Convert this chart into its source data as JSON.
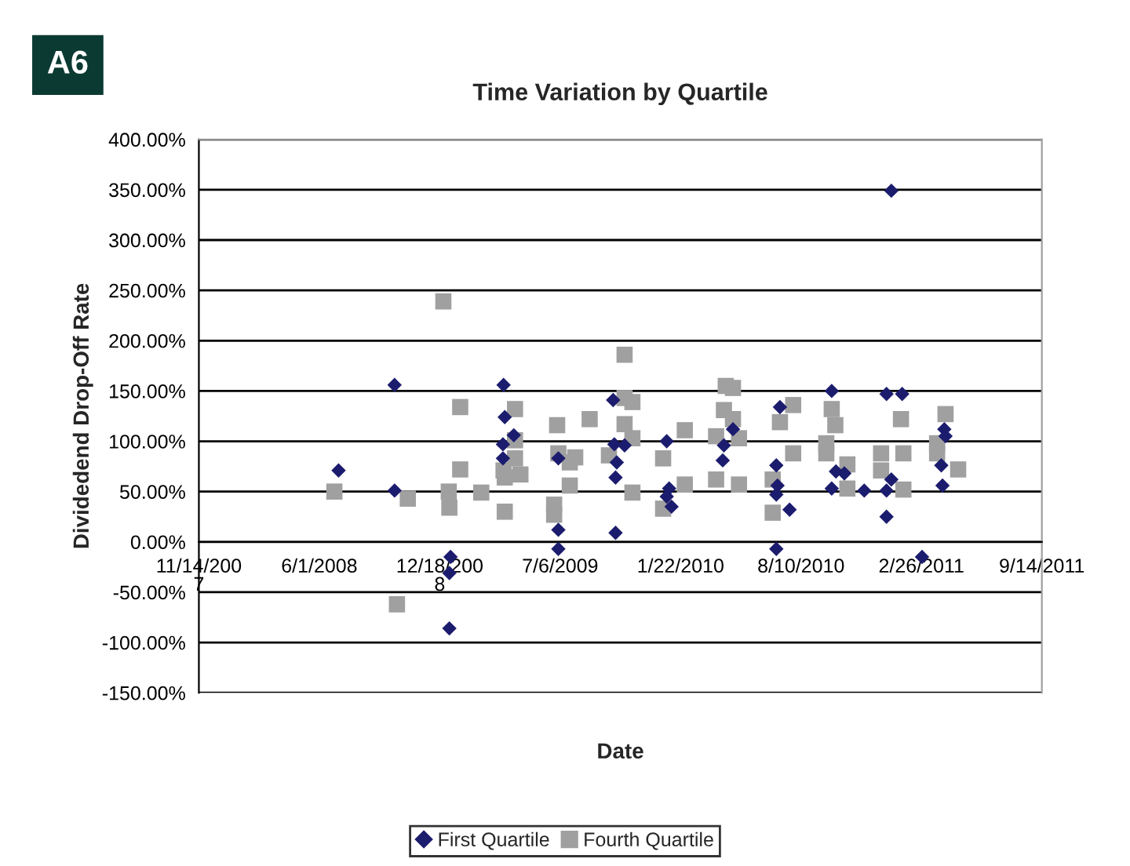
{
  "chart_data": {
    "type": "scatter",
    "title": "Time Variation by Quartile",
    "xlabel": "Date",
    "ylabel": "Dividedend Drop-Off Rate",
    "annotations": [
      "A6"
    ],
    "xlim": [
      "2007-11-14",
      "2011-09-14"
    ],
    "xticks": [
      {
        "value": "2007-11-14",
        "label": "11/14/200\n7"
      },
      {
        "value": "2008-06-01",
        "label": "6/1/2008"
      },
      {
        "value": "2008-12-18",
        "label": "12/18/200\n8"
      },
      {
        "value": "2009-07-06",
        "label": "7/6/2009"
      },
      {
        "value": "2010-01-22",
        "label": "1/22/2010"
      },
      {
        "value": "2010-08-10",
        "label": "8/10/2010"
      },
      {
        "value": "2011-02-26",
        "label": "2/26/2011"
      },
      {
        "value": "2011-09-14",
        "label": "9/14/2011"
      }
    ],
    "ylim": [
      -150,
      400
    ],
    "yticks": [
      {
        "value": -150,
        "label": "-150.00%"
      },
      {
        "value": -100,
        "label": "-100.00%"
      },
      {
        "value": -50,
        "label": "-50.00%"
      },
      {
        "value": 0,
        "label": "0.00%"
      },
      {
        "value": 50,
        "label": "50.00%"
      },
      {
        "value": 100,
        "label": "100.00%"
      },
      {
        "value": 150,
        "label": "150.00%"
      },
      {
        "value": 200,
        "label": "200.00%"
      },
      {
        "value": 250,
        "label": "250.00%"
      },
      {
        "value": 300,
        "label": "300.00%"
      },
      {
        "value": 350,
        "label": "350.00%"
      },
      {
        "value": 400,
        "label": "400.00%"
      }
    ],
    "grid": "y",
    "legend": "bottom",
    "series": [
      {
        "name": "First Quartile",
        "color": "#1c1c6e",
        "marker": "diamond",
        "x": [
          "2008-07-03",
          "2008-10-04",
          "2008-10-04",
          "2009-01-05",
          "2009-01-03",
          "2009-01-03",
          "2009-04-03",
          "2009-04-05",
          "2009-04-02",
          "2009-04-02",
          "2009-04-20",
          "2009-07-03",
          "2009-07-03",
          "2009-07-03",
          "2011-01-07",
          "2009-10-02",
          "2009-10-04",
          "2009-10-21",
          "2009-10-08",
          "2009-10-06",
          "2009-10-06",
          "2009-12-30",
          "2010-01-03",
          "2009-12-30",
          "2010-01-07",
          "2010-04-04",
          "2010-04-02",
          "2010-04-19",
          "2010-07-06",
          "2010-06-30",
          "2010-07-02",
          "2010-06-30",
          "2010-07-22",
          "2010-06-30",
          "2010-09-30",
          "2010-10-07",
          "2010-10-21",
          "2010-09-30",
          "2010-11-23",
          "2010-12-30",
          "2011-01-25",
          "2011-01-07",
          "2010-12-30",
          "2010-12-30",
          "2011-02-27",
          "2011-04-05",
          "2011-04-07",
          "2011-03-31",
          "2011-04-02"
        ],
        "values": [
          71,
          156,
          51,
          -15,
          -31,
          -86,
          156,
          124,
          97,
          83,
          106,
          83,
          12,
          -7,
          349,
          141,
          97,
          96,
          79,
          64,
          9,
          100,
          53,
          45,
          35,
          96,
          81,
          112,
          134,
          76,
          56,
          47,
          32,
          -7,
          150,
          70,
          68,
          53,
          51,
          147,
          147,
          62,
          51,
          25,
          -15,
          112,
          105,
          76,
          56
        ]
      },
      {
        "name": "Fourth Quartile",
        "color": "#a0a0a0",
        "marker": "square",
        "x": [
          "2008-06-26",
          "2008-12-24",
          "2008-10-08",
          "2008-10-26",
          "2009-01-02",
          "2009-01-03",
          "2009-01-21",
          "2009-01-21",
          "2009-02-25",
          "2009-04-05",
          "2009-04-03",
          "2009-04-05",
          "2009-04-22",
          "2009-04-22",
          "2009-04-22",
          "2009-05-01",
          "2009-07-01",
          "2009-07-03",
          "2009-06-26",
          "2009-06-26",
          "2009-07-22",
          "2009-07-22",
          "2009-07-31",
          "2009-08-24",
          "2009-09-25",
          "2009-10-21",
          "2009-10-21",
          "2009-11-03",
          "2009-10-21",
          "2009-11-03",
          "2009-11-03",
          "2009-12-24",
          "2009-12-24",
          "2010-01-29",
          "2010-01-29",
          "2010-03-22",
          "2010-03-22",
          "2010-04-07",
          "2010-04-19",
          "2010-04-04",
          "2010-04-19",
          "2010-04-29",
          "2010-04-29",
          "2010-06-24",
          "2010-06-24",
          "2010-07-06",
          "2010-07-28",
          "2010-07-28",
          "2010-09-21",
          "2010-09-21",
          "2010-09-30",
          "2010-10-06",
          "2010-10-26",
          "2010-10-26",
          "2010-12-21",
          "2010-12-21",
          "2011-01-23",
          "2011-01-27",
          "2011-01-27",
          "2011-03-24",
          "2011-03-24",
          "2011-04-07",
          "2011-04-28"
        ],
        "values": [
          50,
          239,
          -62,
          43,
          50,
          34,
          134,
          72,
          49,
          30,
          71,
          64,
          132,
          101,
          83,
          67,
          116,
          88,
          37,
          27,
          79,
          56,
          84,
          122,
          86,
          186,
          143,
          139,
          117,
          103,
          49,
          83,
          33,
          111,
          57,
          105,
          62,
          155,
          153,
          131,
          122,
          103,
          57,
          62,
          29,
          119,
          136,
          88,
          98,
          88,
          132,
          116,
          77,
          53,
          88,
          71,
          122,
          88,
          52,
          98,
          88,
          127,
          72
        ]
      }
    ]
  }
}
